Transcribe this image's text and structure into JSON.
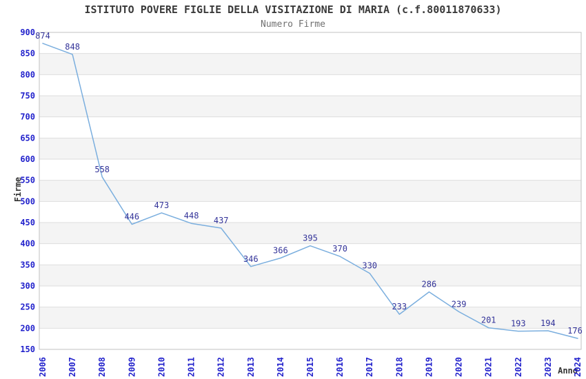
{
  "chart_data": {
    "type": "line",
    "title": "ISTITUTO POVERE FIGLIE DELLA VISITAZIONE DI MARIA (c.f.80011870633)",
    "subtitle": "Numero Firme",
    "xlabel": "Anno",
    "ylabel": "Firme",
    "categories": [
      "2006",
      "2007",
      "2008",
      "2009",
      "2010",
      "2011",
      "2012",
      "2013",
      "2014",
      "2015",
      "2016",
      "2017",
      "2018",
      "2019",
      "2020",
      "2021",
      "2022",
      "2023",
      "2024"
    ],
    "values": [
      874,
      848,
      558,
      446,
      473,
      448,
      437,
      346,
      366,
      395,
      370,
      330,
      233,
      286,
      239,
      201,
      193,
      194,
      176
    ],
    "ylim": [
      150,
      900
    ],
    "ytick_step": 50,
    "yticks": [
      150,
      200,
      250,
      300,
      350,
      400,
      450,
      500,
      550,
      600,
      650,
      700,
      750,
      800,
      850,
      900
    ],
    "grid": "horizontal-gridlines-with-alternating-bands",
    "legend": "none",
    "point_labels_shown": true,
    "x_tick_rotation_degrees": -90,
    "colors": {
      "line": "#7aaede",
      "tick_labels": "#2222cc",
      "point_labels": "#333399",
      "band": "#f4f4f4",
      "gridline": "#dddddd",
      "plot_border": "#c0c0c0",
      "title": "#3a3a3a",
      "subtitle": "#707070",
      "axis_titles": "#333333",
      "background": "#ffffff"
    }
  }
}
